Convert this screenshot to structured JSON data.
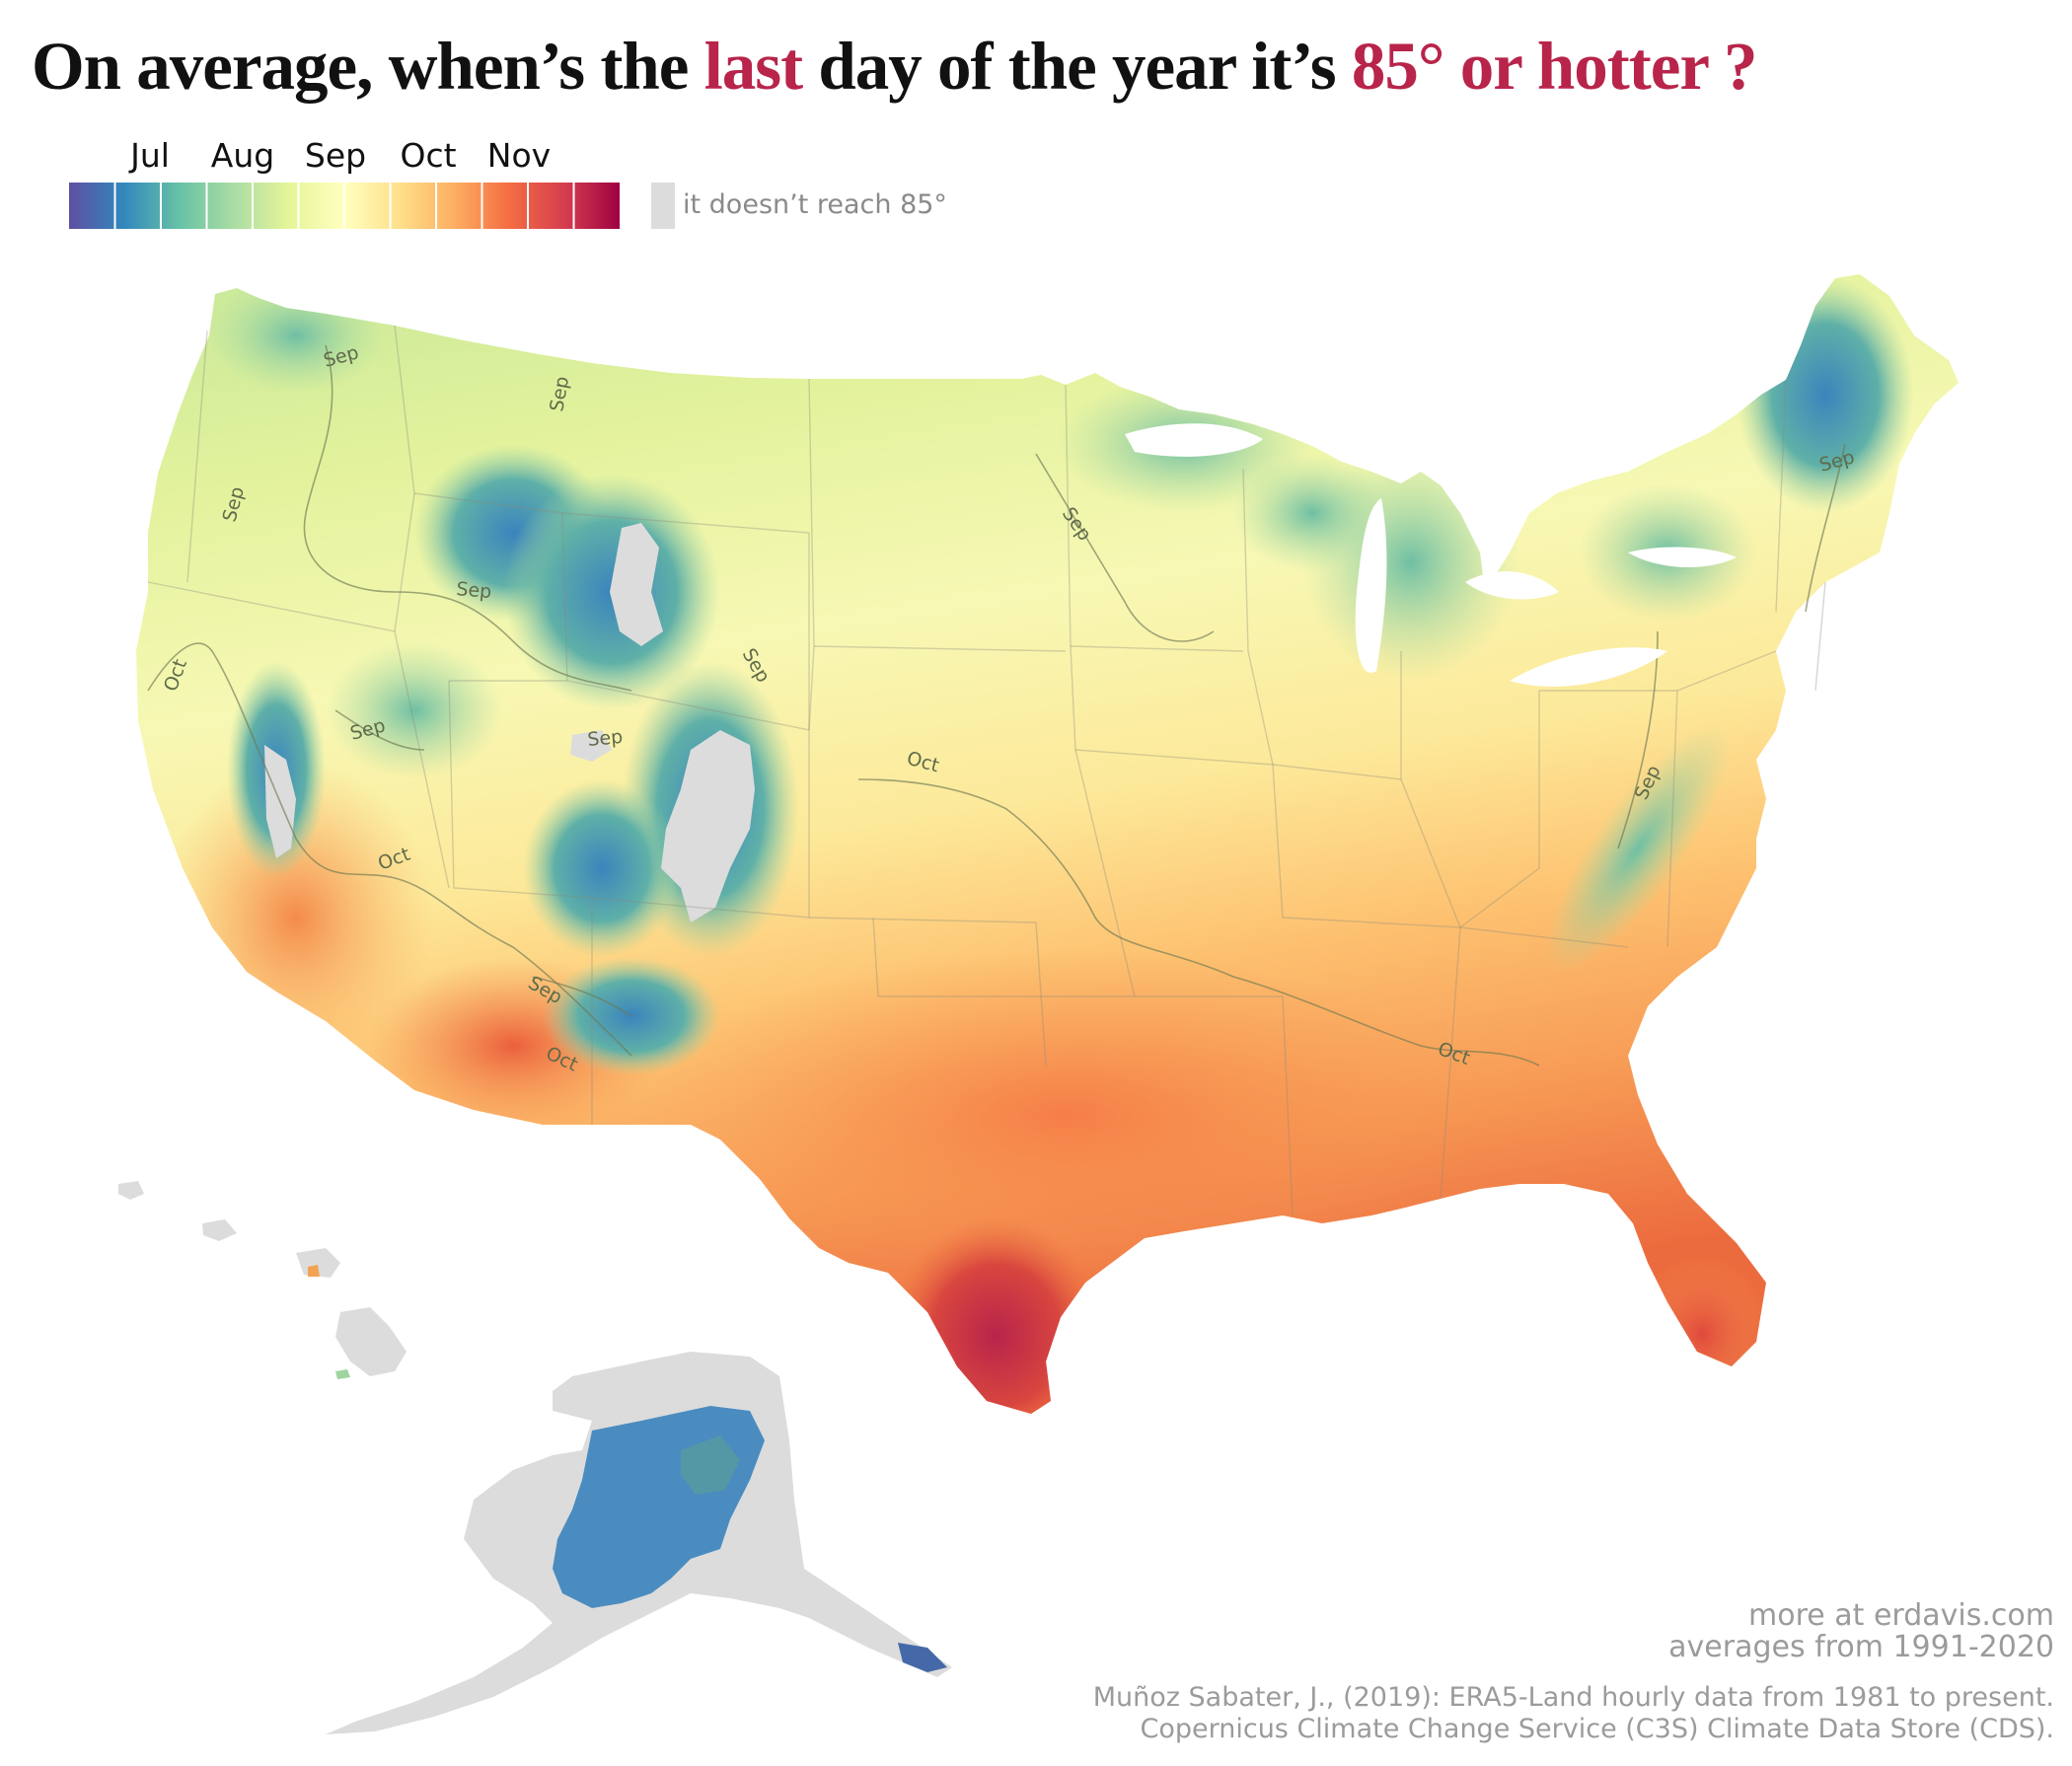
{
  "title": {
    "prefix": "On average, when’s the",
    "highlight_1": "last",
    "middle": "day of the year it’s",
    "highlight_2": "85°",
    "suffix": "or hotter ?"
  },
  "legend": {
    "months": [
      "Jul",
      "Aug",
      "Sep",
      "Oct",
      "Nov"
    ],
    "no_data_label": "it doesn’t reach 85°",
    "color_stops": [
      "#5e4fa2",
      "#3288bd",
      "#66c2a5",
      "#abdda4",
      "#e6f598",
      "#ffffbf",
      "#fee08b",
      "#fdae61",
      "#f46d43",
      "#d53e4f",
      "#9e0142"
    ],
    "no_data_color": "#dcdcdc"
  },
  "contour_labels": {
    "sep": "Sep",
    "oct": "Oct"
  },
  "footer": {
    "site": "more at erdavis.com",
    "period": "averages from 1991-2020",
    "source_line_1": "Muñoz Sabater, J., (2019): ERA5-Land hourly data from 1981 to present.",
    "source_line_2": "Copernicus Climate Change Service (C3S) Climate Data Store (CDS)."
  },
  "map_regions": {
    "conus": "contiguous-united-states",
    "alaska": "alaska",
    "hawaii": "hawaii"
  }
}
